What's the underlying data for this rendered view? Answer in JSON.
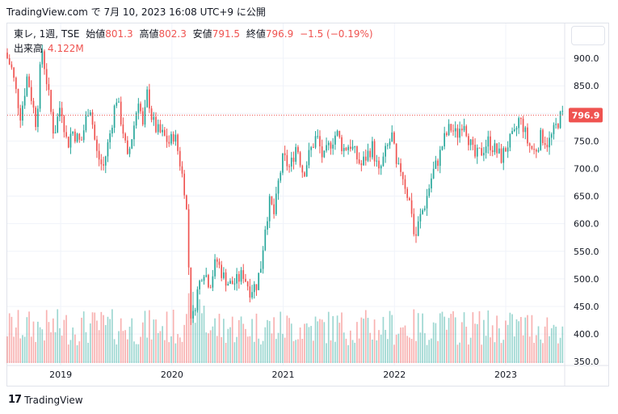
{
  "header": {
    "text": "TradingView.com で 7月 10, 2023 16:08 UTC+9 に公開"
  },
  "legend": {
    "symbol": "東レ, 1週, TSE",
    "open_label": "始値",
    "open": "801.3",
    "high_label": "高値",
    "high": "802.3",
    "low_label": "安値",
    "low": "791.5",
    "close_label": "終値",
    "close": "796.9",
    "change": "−1.5 (−0.19%)",
    "volume_label": "出来高",
    "volume": "4.122M"
  },
  "last_price_label": "796.9",
  "brand": {
    "name": "TradingView",
    "logo": "17"
  },
  "colors": {
    "up": "#26a69a",
    "down": "#ef5350",
    "price_tag": "#ef5350"
  },
  "chart_data": {
    "type": "candlestick",
    "y_ticks": [
      "900.0",
      "850.0",
      "800.0",
      "750.0",
      "700.0",
      "650.0",
      "600.0",
      "550.0",
      "500.0",
      "450.0",
      "400.0",
      "350.0"
    ],
    "y_tick_values": [
      900,
      850,
      800,
      750,
      700,
      650,
      600,
      550,
      500,
      450,
      400,
      350
    ],
    "x_ticks": [
      "2019",
      "2020",
      "2021",
      "2022",
      "2023"
    ],
    "x_tick_dates": [
      2019.0,
      2020.0,
      2021.0,
      2022.0,
      2023.0
    ],
    "x_range": [
      2018.52,
      2023.53
    ],
    "y_range": [
      343,
      963
    ],
    "last_price": 796.9,
    "anchors": [
      [
        2018.52,
        910
      ],
      [
        2018.58,
        880
      ],
      [
        2018.66,
        795
      ],
      [
        2018.72,
        870
      ],
      [
        2018.8,
        780
      ],
      [
        2018.85,
        920
      ],
      [
        2018.9,
        850
      ],
      [
        2018.96,
        760
      ],
      [
        2019.02,
        820
      ],
      [
        2019.08,
        740
      ],
      [
        2019.12,
        770
      ],
      [
        2019.2,
        745
      ],
      [
        2019.28,
        820
      ],
      [
        2019.34,
        730
      ],
      [
        2019.4,
        700
      ],
      [
        2019.46,
        760
      ],
      [
        2019.52,
        830
      ],
      [
        2019.58,
        770
      ],
      [
        2019.62,
        715
      ],
      [
        2019.68,
        780
      ],
      [
        2019.72,
        830
      ],
      [
        2019.76,
        770
      ],
      [
        2019.8,
        840
      ],
      [
        2019.84,
        790
      ],
      [
        2019.88,
        770
      ],
      [
        2019.94,
        760
      ],
      [
        2020.0,
        745
      ],
      [
        2020.04,
        765
      ],
      [
        2020.08,
        725
      ],
      [
        2020.14,
        655
      ],
      [
        2020.16,
        595
      ],
      [
        2020.18,
        455
      ],
      [
        2020.2,
        420
      ],
      [
        2020.24,
        470
      ],
      [
        2020.3,
        520
      ],
      [
        2020.36,
        490
      ],
      [
        2020.42,
        535
      ],
      [
        2020.48,
        505
      ],
      [
        2020.54,
        490
      ],
      [
        2020.6,
        495
      ],
      [
        2020.66,
        510
      ],
      [
        2020.72,
        480
      ],
      [
        2020.78,
        490
      ],
      [
        2020.82,
        525
      ],
      [
        2020.86,
        600
      ],
      [
        2020.9,
        640
      ],
      [
        2020.94,
        615
      ],
      [
        2020.98,
        680
      ],
      [
        2021.02,
        720
      ],
      [
        2021.08,
        700
      ],
      [
        2021.14,
        745
      ],
      [
        2021.2,
        690
      ],
      [
        2021.26,
        730
      ],
      [
        2021.32,
        760
      ],
      [
        2021.38,
        715
      ],
      [
        2021.44,
        745
      ],
      [
        2021.5,
        765
      ],
      [
        2021.56,
        735
      ],
      [
        2021.62,
        745
      ],
      [
        2021.68,
        720
      ],
      [
        2021.72,
        705
      ],
      [
        2021.76,
        720
      ],
      [
        2021.82,
        740
      ],
      [
        2021.88,
        690
      ],
      [
        2021.94,
        730
      ],
      [
        2022.0,
        760
      ],
      [
        2022.04,
        695
      ],
      [
        2022.08,
        700
      ],
      [
        2022.14,
        650
      ],
      [
        2022.18,
        620
      ],
      [
        2022.2,
        565
      ],
      [
        2022.24,
        605
      ],
      [
        2022.3,
        640
      ],
      [
        2022.36,
        690
      ],
      [
        2022.42,
        720
      ],
      [
        2022.46,
        750
      ],
      [
        2022.52,
        775
      ],
      [
        2022.58,
        760
      ],
      [
        2022.64,
        790
      ],
      [
        2022.7,
        745
      ],
      [
        2022.74,
        720
      ],
      [
        2022.8,
        730
      ],
      [
        2022.86,
        750
      ],
      [
        2022.92,
        735
      ],
      [
        2022.98,
        720
      ],
      [
        2023.04,
        745
      ],
      [
        2023.1,
        760
      ],
      [
        2023.14,
        790
      ],
      [
        2023.18,
        775
      ],
      [
        2023.22,
        745
      ],
      [
        2023.28,
        730
      ],
      [
        2023.34,
        760
      ],
      [
        2023.4,
        745
      ],
      [
        2023.46,
        770
      ],
      [
        2023.5,
        790
      ],
      [
        2023.53,
        797
      ]
    ]
  }
}
